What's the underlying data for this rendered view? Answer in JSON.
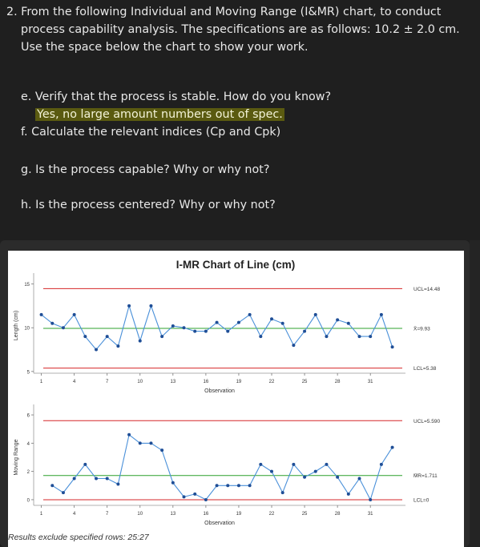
{
  "question": {
    "intro": "2. From the following Individual and Moving Range (I&MR) chart, to conduct process capability analysis. The specifications are as follows: 10.2 ± 2.0 cm. Use the space below the chart to show your work.",
    "e_label": "e. Verify that the process is stable. How do you know?",
    "e_answer": "Yes, no large amount numbers out of spec.",
    "f_label": "f. Calculate the relevant indices (Cp and Cpk)",
    "g_label": "g. Is the process capable? Why or why not?",
    "h_label": "h. Is the process centered? Why or why not?"
  },
  "chart_data": [
    {
      "type": "line",
      "title": "I-MR Chart of Line (cm)",
      "xlabel": "Observation",
      "ylabel": "Length (cm)",
      "x_ticks": [
        1,
        4,
        7,
        10,
        13,
        16,
        19,
        22,
        25,
        28,
        31
      ],
      "y_ticks": [
        5,
        10,
        15
      ],
      "ylim": [
        4.8,
        15.7
      ],
      "x": [
        1,
        2,
        3,
        4,
        5,
        6,
        7,
        8,
        9,
        10,
        11,
        12,
        13,
        14,
        15,
        16,
        17,
        18,
        19,
        20,
        21,
        22,
        23,
        24,
        25,
        26,
        27,
        28,
        29,
        30,
        31,
        32,
        33
      ],
      "values": [
        11.5,
        10.5,
        10.0,
        11.5,
        9.0,
        7.5,
        9.0,
        7.9,
        12.5,
        8.5,
        12.5,
        9.0,
        10.2,
        10.0,
        9.6,
        9.6,
        10.6,
        9.6,
        10.6,
        11.5,
        9.0,
        11.0,
        10.5,
        8.0,
        9.6,
        11.5,
        9.0,
        10.9,
        10.5,
        9.0,
        9.0,
        11.5,
        7.8
      ],
      "center_line": {
        "value": 9.93,
        "label": "X̄=9.93",
        "color": "#2ca02c"
      },
      "ucl": {
        "value": 14.48,
        "label": "UCL=14.48",
        "color": "#d62728"
      },
      "lcl": {
        "value": 5.38,
        "label": "LCL=5.38",
        "color": "#d62728"
      },
      "series_color": "#4a90d9",
      "marker_color": "#1f4e96"
    },
    {
      "type": "line",
      "xlabel": "Observation",
      "ylabel": "Moving Range",
      "x_ticks": [
        1,
        4,
        7,
        10,
        13,
        16,
        19,
        22,
        25,
        28,
        31
      ],
      "y_ticks": [
        0,
        2,
        4,
        6
      ],
      "ylim": [
        -0.4,
        6.4
      ],
      "x": [
        2,
        3,
        4,
        5,
        6,
        7,
        8,
        9,
        10,
        11,
        12,
        13,
        14,
        15,
        16,
        17,
        18,
        19,
        20,
        21,
        22,
        23,
        24,
        25,
        26,
        27,
        28,
        29,
        30,
        31,
        32,
        33
      ],
      "values": [
        1.0,
        0.5,
        1.5,
        2.5,
        1.5,
        1.5,
        1.1,
        4.6,
        4.0,
        4.0,
        3.5,
        1.2,
        0.2,
        0.4,
        0.0,
        1.0,
        1.0,
        1.0,
        1.0,
        2.5,
        2.0,
        0.5,
        2.5,
        1.6,
        2.0,
        2.5,
        1.6,
        0.4,
        1.5,
        0.0,
        2.5,
        3.7
      ],
      "center_line": {
        "value": 1.711,
        "label": "M̄R=1.711",
        "color": "#2ca02c"
      },
      "ucl": {
        "value": 5.59,
        "label": "UCL=5.590",
        "color": "#d62728"
      },
      "lcl": {
        "value": 0,
        "label": "LCL=0",
        "color": "#d62728"
      },
      "series_color": "#4a90d9",
      "marker_color": "#1f4e96"
    }
  ],
  "footnote": "Results exclude specified rows: 25:27"
}
